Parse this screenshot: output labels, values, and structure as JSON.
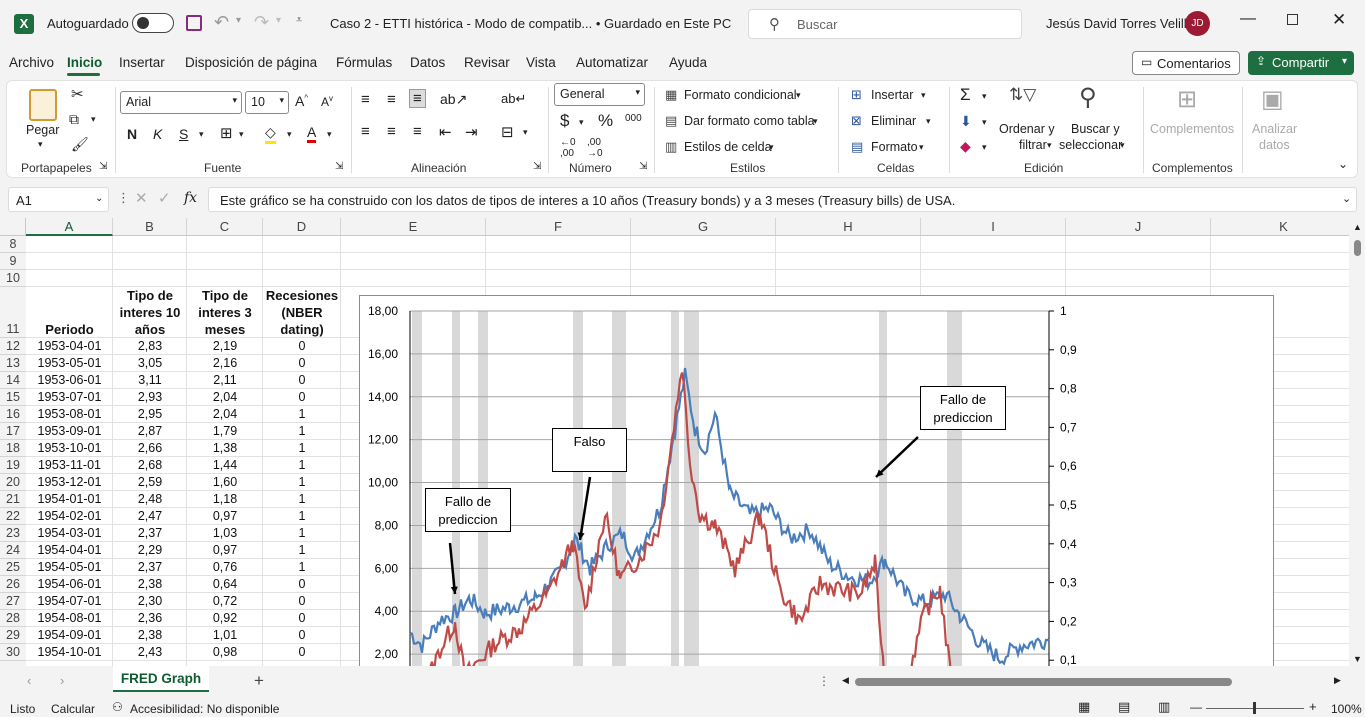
{
  "titlebar": {
    "autosave_label": "Autoguardado",
    "file_title": "Caso 2 - ETTI histórica  -  Modo de compatib...  •  Guardado en Este PC",
    "search_placeholder": "Buscar",
    "user_name": "Jesús David  Torres Velilla",
    "user_initials": "JD"
  },
  "menu": [
    "Archivo",
    "Inicio",
    "Insertar",
    "Disposición de página",
    "Fórmulas",
    "Datos",
    "Revisar",
    "Vista",
    "Automatizar",
    "Ayuda"
  ],
  "menu_active": "Inicio",
  "actions": {
    "comments": "Comentarios",
    "share": "Compartir"
  },
  "ribbon": {
    "portapapeles": {
      "paste": "Pegar",
      "label": "Portapapeles"
    },
    "fuente": {
      "font": "Arial",
      "size": "10",
      "bold": "N",
      "italic": "K",
      "underline": "S",
      "label": "Fuente"
    },
    "alineacion": {
      "label": "Alineación"
    },
    "numero": {
      "format": "General",
      "currency": "$",
      "percent": "%",
      "thousands": "000",
      "label": "Número"
    },
    "estilos": {
      "cond": "Formato condicional",
      "table": "Dar formato como tabla",
      "cell": "Estilos de celda",
      "label": "Estilos"
    },
    "celdas": {
      "insert": "Insertar",
      "delete": "Eliminar",
      "format": "Formato",
      "label": "Celdas"
    },
    "edicion": {
      "sort1": "Ordenar y",
      "sort2": "filtrar",
      "find1": "Buscar y",
      "find2": "seleccionar",
      "label": "Edición"
    },
    "complementos": {
      "addins": "Complementos",
      "analyze1": "Analizar",
      "analyze2": "datos",
      "label": "Complementos"
    }
  },
  "formula_bar": {
    "name_box": "A1",
    "fx": "fx",
    "content": "Este gráfico se ha construido con los datos de tipos de interes a 10 años (Treasury bonds) y a 3 meses (Treasury bills) de USA."
  },
  "columns": [
    "A",
    "B",
    "C",
    "D",
    "E",
    "F",
    "G",
    "H",
    "I",
    "J",
    "K"
  ],
  "rows_top": [
    "8",
    "9",
    "10"
  ],
  "headers": {
    "row": "11",
    "a": "Periodo",
    "b": [
      "Tipo de",
      "interes 10",
      "años"
    ],
    "c": [
      "Tipo de",
      "interes 3",
      "meses"
    ],
    "d": [
      "Recesiones",
      "(NBER",
      "dating)"
    ]
  },
  "table": [
    [
      "12",
      "1953-04-01",
      "2,83",
      "2,19",
      "0"
    ],
    [
      "13",
      "1953-05-01",
      "3,05",
      "2,16",
      "0"
    ],
    [
      "14",
      "1953-06-01",
      "3,11",
      "2,11",
      "0"
    ],
    [
      "15",
      "1953-07-01",
      "2,93",
      "2,04",
      "0"
    ],
    [
      "16",
      "1953-08-01",
      "2,95",
      "2,04",
      "1"
    ],
    [
      "17",
      "1953-09-01",
      "2,87",
      "1,79",
      "1"
    ],
    [
      "18",
      "1953-10-01",
      "2,66",
      "1,38",
      "1"
    ],
    [
      "19",
      "1953-11-01",
      "2,68",
      "1,44",
      "1"
    ],
    [
      "20",
      "1953-12-01",
      "2,59",
      "1,60",
      "1"
    ],
    [
      "21",
      "1954-01-01",
      "2,48",
      "1,18",
      "1"
    ],
    [
      "22",
      "1954-02-01",
      "2,47",
      "0,97",
      "1"
    ],
    [
      "23",
      "1954-03-01",
      "2,37",
      "1,03",
      "1"
    ],
    [
      "24",
      "1954-04-01",
      "2,29",
      "0,97",
      "1"
    ],
    [
      "25",
      "1954-05-01",
      "2,37",
      "0,76",
      "1"
    ],
    [
      "26",
      "1954-06-01",
      "2,38",
      "0,64",
      "0"
    ],
    [
      "27",
      "1954-07-01",
      "2,30",
      "0,72",
      "0"
    ],
    [
      "28",
      "1954-08-01",
      "2,36",
      "0,92",
      "0"
    ],
    [
      "29",
      "1954-09-01",
      "2,38",
      "1,01",
      "0"
    ],
    [
      "30",
      "1954-10-01",
      "2,43",
      "0,98",
      "0"
    ]
  ],
  "chart_data": {
    "type": "line",
    "left_axis_ticks": [
      "18,00",
      "16,00",
      "14,00",
      "12,00",
      "10,00",
      "8,00",
      "6,00",
      "4,00",
      "2,00"
    ],
    "right_axis_ticks": [
      "1",
      "0,9",
      "0,8",
      "0,7",
      "0,6",
      "0,5",
      "0,4",
      "0,3",
      "0,2",
      "0,1"
    ],
    "ylim_left": [
      0,
      18
    ],
    "ylim_right": [
      0,
      1
    ],
    "series_colors": {
      "ten_year": "#4a7ebb",
      "three_month": "#be4b48",
      "recession": "#d9d9d9"
    },
    "callouts": [
      {
        "text": [
          "Fallo de",
          "prediccion"
        ]
      },
      {
        "text": [
          "Falso"
        ]
      },
      {
        "text": [
          "Fallo de",
          "prediccion"
        ]
      }
    ]
  },
  "sheet": {
    "tab": "FRED Graph",
    "add": "+"
  },
  "status": {
    "ready": "Listo",
    "calc": "Calcular",
    "access": "Accesibilidad: No disponible",
    "zoom": "100%"
  }
}
